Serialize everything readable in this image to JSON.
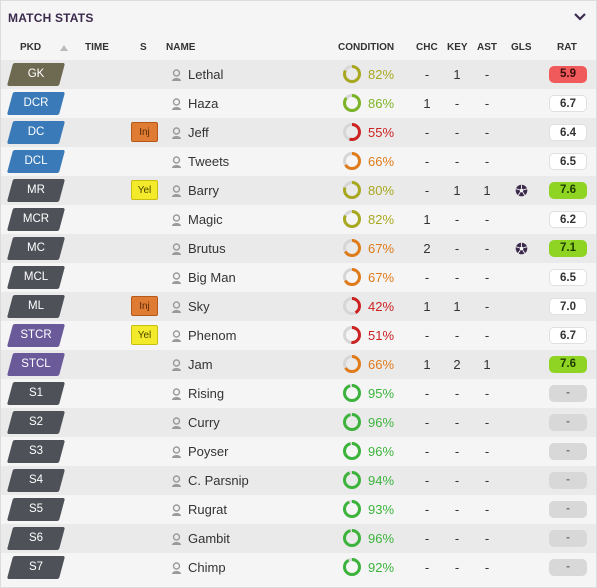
{
  "panel": {
    "title": "MATCH STATS",
    "collapse_icon": "chevron-down-icon"
  },
  "columns": {
    "pkd": "PKD",
    "time": "TIME",
    "s": "S",
    "name": "NAME",
    "condition": "CONDITION",
    "chc": "CHC",
    "key": "KEY",
    "ast": "AST",
    "gls": "GLS",
    "rat": "RAT"
  },
  "colors": {
    "gk": "#6e6a52",
    "defender": "#3a7ab8",
    "midfielder": "#4e5258",
    "striker": "#6a5a9a",
    "sub": "#4e5258",
    "good": "#3cb43c",
    "ok": "#a8a820",
    "mid": "#e07b1a",
    "bad": "#cc2222"
  },
  "players": [
    {
      "pos": "GK",
      "pos_color": "#6e6a52",
      "status": "",
      "name": "Lethal",
      "cond_value": 82,
      "condition": "82%",
      "cond_color": "#a8a820",
      "chc": "-",
      "key": "1",
      "ast": "-",
      "goal": false,
      "rat": "5.9",
      "rat_bg": "#f05a5a",
      "rat_fg": "#3a0a0a"
    },
    {
      "pos": "DCR",
      "pos_color": "#3a7ab8",
      "status": "",
      "name": "Haza",
      "cond_value": 86,
      "condition": "86%",
      "cond_color": "#7cb428",
      "chc": "1",
      "key": "-",
      "ast": "-",
      "goal": false,
      "rat": "6.7",
      "rat_bg": "#ffffff",
      "rat_fg": "#333333"
    },
    {
      "pos": "DC",
      "pos_color": "#3a7ab8",
      "status": "Inj",
      "name": "Jeff",
      "cond_value": 55,
      "condition": "55%",
      "cond_color": "#cc2222",
      "chc": "-",
      "key": "-",
      "ast": "-",
      "goal": false,
      "rat": "6.4",
      "rat_bg": "#ffffff",
      "rat_fg": "#333333"
    },
    {
      "pos": "DCL",
      "pos_color": "#3a7ab8",
      "status": "",
      "name": "Tweets",
      "cond_value": 66,
      "condition": "66%",
      "cond_color": "#e07b1a",
      "chc": "-",
      "key": "-",
      "ast": "-",
      "goal": false,
      "rat": "6.5",
      "rat_bg": "#ffffff",
      "rat_fg": "#333333"
    },
    {
      "pos": "MR",
      "pos_color": "#4e5258",
      "status": "Yel",
      "name": "Barry",
      "cond_value": 80,
      "condition": "80%",
      "cond_color": "#a8a820",
      "chc": "-",
      "key": "1",
      "ast": "1",
      "goal": true,
      "rat": "7.6",
      "rat_bg": "#8fd422",
      "rat_fg": "#1e3a00"
    },
    {
      "pos": "MCR",
      "pos_color": "#4e5258",
      "status": "",
      "name": "Magic",
      "cond_value": 82,
      "condition": "82%",
      "cond_color": "#a8a820",
      "chc": "1",
      "key": "-",
      "ast": "-",
      "goal": false,
      "rat": "6.2",
      "rat_bg": "#ffffff",
      "rat_fg": "#333333"
    },
    {
      "pos": "MC",
      "pos_color": "#4e5258",
      "status": "",
      "name": "Brutus",
      "cond_value": 67,
      "condition": "67%",
      "cond_color": "#e07b1a",
      "chc": "2",
      "key": "-",
      "ast": "-",
      "goal": true,
      "rat": "7.1",
      "rat_bg": "#8fd422",
      "rat_fg": "#1e3a00"
    },
    {
      "pos": "MCL",
      "pos_color": "#4e5258",
      "status": "",
      "name": "Big Man",
      "cond_value": 67,
      "condition": "67%",
      "cond_color": "#e07b1a",
      "chc": "-",
      "key": "-",
      "ast": "-",
      "goal": false,
      "rat": "6.5",
      "rat_bg": "#ffffff",
      "rat_fg": "#333333"
    },
    {
      "pos": "ML",
      "pos_color": "#4e5258",
      "status": "Inj",
      "name": "Sky",
      "cond_value": 42,
      "condition": "42%",
      "cond_color": "#cc2222",
      "chc": "1",
      "key": "1",
      "ast": "-",
      "goal": false,
      "rat": "7.0",
      "rat_bg": "#ffffff",
      "rat_fg": "#333333"
    },
    {
      "pos": "STCR",
      "pos_color": "#6a5a9a",
      "status": "Yel",
      "name": "Phenom",
      "cond_value": 51,
      "condition": "51%",
      "cond_color": "#cc2222",
      "chc": "-",
      "key": "-",
      "ast": "-",
      "goal": false,
      "rat": "6.7",
      "rat_bg": "#ffffff",
      "rat_fg": "#333333"
    },
    {
      "pos": "STCL",
      "pos_color": "#6a5a9a",
      "status": "",
      "name": "Jam",
      "cond_value": 66,
      "condition": "66%",
      "cond_color": "#e07b1a",
      "chc": "1",
      "key": "2",
      "ast": "1",
      "goal": false,
      "rat": "7.6",
      "rat_bg": "#8fd422",
      "rat_fg": "#1e3a00"
    },
    {
      "pos": "S1",
      "pos_color": "#4e5258",
      "status": "",
      "name": "Rising",
      "cond_value": 95,
      "condition": "95%",
      "cond_color": "#3cb43c",
      "chc": "-",
      "key": "-",
      "ast": "-",
      "goal": false,
      "rat": "-",
      "rat_bg": "#d8d8d8",
      "rat_fg": "#777777"
    },
    {
      "pos": "S2",
      "pos_color": "#4e5258",
      "status": "",
      "name": "Curry",
      "cond_value": 96,
      "condition": "96%",
      "cond_color": "#3cb43c",
      "chc": "-",
      "key": "-",
      "ast": "-",
      "goal": false,
      "rat": "-",
      "rat_bg": "#d8d8d8",
      "rat_fg": "#777777"
    },
    {
      "pos": "S3",
      "pos_color": "#4e5258",
      "status": "",
      "name": "Poyser",
      "cond_value": 96,
      "condition": "96%",
      "cond_color": "#3cb43c",
      "chc": "-",
      "key": "-",
      "ast": "-",
      "goal": false,
      "rat": "-",
      "rat_bg": "#d8d8d8",
      "rat_fg": "#777777"
    },
    {
      "pos": "S4",
      "pos_color": "#4e5258",
      "status": "",
      "name": "C. Parsnip",
      "cond_value": 94,
      "condition": "94%",
      "cond_color": "#3cb43c",
      "chc": "-",
      "key": "-",
      "ast": "-",
      "goal": false,
      "rat": "-",
      "rat_bg": "#d8d8d8",
      "rat_fg": "#777777"
    },
    {
      "pos": "S5",
      "pos_color": "#4e5258",
      "status": "",
      "name": "Rugrat",
      "cond_value": 93,
      "condition": "93%",
      "cond_color": "#3cb43c",
      "chc": "-",
      "key": "-",
      "ast": "-",
      "goal": false,
      "rat": "-",
      "rat_bg": "#d8d8d8",
      "rat_fg": "#777777"
    },
    {
      "pos": "S6",
      "pos_color": "#4e5258",
      "status": "",
      "name": "Gambit",
      "cond_value": 96,
      "condition": "96%",
      "cond_color": "#3cb43c",
      "chc": "-",
      "key": "-",
      "ast": "-",
      "goal": false,
      "rat": "-",
      "rat_bg": "#d8d8d8",
      "rat_fg": "#777777"
    },
    {
      "pos": "S7",
      "pos_color": "#4e5258",
      "status": "",
      "name": "Chimp",
      "cond_value": 92,
      "condition": "92%",
      "cond_color": "#3cb43c",
      "chc": "-",
      "key": "-",
      "ast": "-",
      "goal": false,
      "rat": "-",
      "rat_bg": "#d8d8d8",
      "rat_fg": "#777777"
    }
  ]
}
